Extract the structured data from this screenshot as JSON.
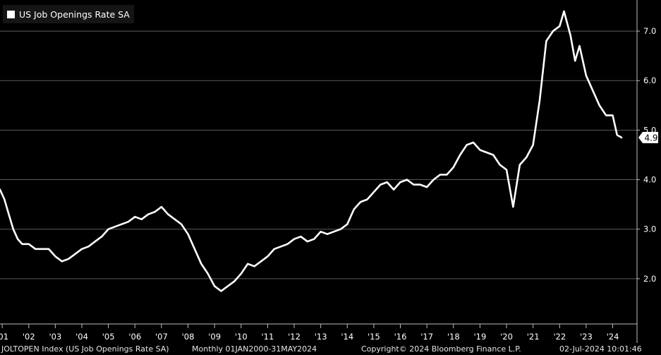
{
  "chart_data": {
    "type": "line",
    "title": "US Job Openings Rate SA",
    "series": [
      {
        "name": "US Job Openings Rate SA",
        "color": "#ffffff",
        "points": [
          [
            "2000-12",
            3.8
          ],
          [
            "2001-02",
            3.6
          ],
          [
            "2001-04",
            3.3
          ],
          [
            "2001-06",
            3.0
          ],
          [
            "2001-08",
            2.8
          ],
          [
            "2001-10",
            2.7
          ],
          [
            "2002-01",
            2.7
          ],
          [
            "2002-04",
            2.6
          ],
          [
            "2002-07",
            2.6
          ],
          [
            "2002-10",
            2.6
          ],
          [
            "2003-01",
            2.45
          ],
          [
            "2003-04",
            2.35
          ],
          [
            "2003-07",
            2.4
          ],
          [
            "2003-10",
            2.5
          ],
          [
            "2004-01",
            2.6
          ],
          [
            "2004-04",
            2.65
          ],
          [
            "2004-07",
            2.75
          ],
          [
            "2004-10",
            2.85
          ],
          [
            "2005-01",
            3.0
          ],
          [
            "2005-04",
            3.05
          ],
          [
            "2005-07",
            3.1
          ],
          [
            "2005-10",
            3.15
          ],
          [
            "2006-01",
            3.25
          ],
          [
            "2006-04",
            3.2
          ],
          [
            "2006-07",
            3.3
          ],
          [
            "2006-10",
            3.35
          ],
          [
            "2007-01",
            3.45
          ],
          [
            "2007-04",
            3.3
          ],
          [
            "2007-07",
            3.2
          ],
          [
            "2007-10",
            3.1
          ],
          [
            "2008-01",
            2.9
          ],
          [
            "2008-04",
            2.6
          ],
          [
            "2008-07",
            2.3
          ],
          [
            "2008-10",
            2.1
          ],
          [
            "2009-01",
            1.85
          ],
          [
            "2009-04",
            1.75
          ],
          [
            "2009-07",
            1.85
          ],
          [
            "2009-10",
            1.95
          ],
          [
            "2010-01",
            2.1
          ],
          [
            "2010-04",
            2.3
          ],
          [
            "2010-07",
            2.25
          ],
          [
            "2010-10",
            2.35
          ],
          [
            "2011-01",
            2.45
          ],
          [
            "2011-04",
            2.6
          ],
          [
            "2011-07",
            2.65
          ],
          [
            "2011-10",
            2.7
          ],
          [
            "2012-01",
            2.8
          ],
          [
            "2012-04",
            2.85
          ],
          [
            "2012-07",
            2.75
          ],
          [
            "2012-10",
            2.8
          ],
          [
            "2013-01",
            2.95
          ],
          [
            "2013-04",
            2.9
          ],
          [
            "2013-07",
            2.95
          ],
          [
            "2013-10",
            3.0
          ],
          [
            "2014-01",
            3.1
          ],
          [
            "2014-04",
            3.4
          ],
          [
            "2014-07",
            3.55
          ],
          [
            "2014-10",
            3.6
          ],
          [
            "2015-01",
            3.75
          ],
          [
            "2015-04",
            3.9
          ],
          [
            "2015-07",
            3.95
          ],
          [
            "2015-10",
            3.8
          ],
          [
            "2016-01",
            3.95
          ],
          [
            "2016-04",
            4.0
          ],
          [
            "2016-07",
            3.9
          ],
          [
            "2016-10",
            3.9
          ],
          [
            "2017-01",
            3.85
          ],
          [
            "2017-04",
            4.0
          ],
          [
            "2017-07",
            4.1
          ],
          [
            "2017-10",
            4.1
          ],
          [
            "2018-01",
            4.25
          ],
          [
            "2018-04",
            4.5
          ],
          [
            "2018-07",
            4.7
          ],
          [
            "2018-10",
            4.75
          ],
          [
            "2019-01",
            4.6
          ],
          [
            "2019-04",
            4.55
          ],
          [
            "2019-07",
            4.5
          ],
          [
            "2019-10",
            4.3
          ],
          [
            "2020-01",
            4.2
          ],
          [
            "2020-04",
            3.45
          ],
          [
            "2020-07",
            4.3
          ],
          [
            "2020-10",
            4.45
          ],
          [
            "2021-01",
            4.7
          ],
          [
            "2021-04",
            5.6
          ],
          [
            "2021-07",
            6.8
          ],
          [
            "2021-10",
            7.0
          ],
          [
            "2022-01",
            7.1
          ],
          [
            "2022-03",
            7.4
          ],
          [
            "2022-06",
            6.9
          ],
          [
            "2022-08",
            6.4
          ],
          [
            "2022-10",
            6.7
          ],
          [
            "2023-01",
            6.1
          ],
          [
            "2023-04",
            5.8
          ],
          [
            "2023-07",
            5.5
          ],
          [
            "2023-10",
            5.3
          ],
          [
            "2024-01",
            5.3
          ],
          [
            "2024-03",
            4.9
          ],
          [
            "2024-05",
            4.85
          ]
        ]
      }
    ],
    "x_ticks": [
      "'01",
      "'02",
      "'03",
      "'04",
      "'05",
      "'06",
      "'07",
      "'08",
      "'09",
      "'10",
      "'11",
      "'12",
      "'13",
      "'14",
      "'15",
      "'16",
      "'17",
      "'18",
      "'19",
      "'20",
      "'21",
      "'22",
      "'23",
      "'24"
    ],
    "y_ticks": [
      "2.0",
      "3.0",
      "4.0",
      "5.0",
      "6.0",
      "7.0"
    ],
    "xlim": [
      "2000-12",
      "2024-12"
    ],
    "ylim": [
      1.1,
      7.6
    ],
    "last_value_label": "4.9",
    "grid": true,
    "legend": "top-left",
    "background": "#000000",
    "line_color": "#ffffff"
  },
  "footer": {
    "index": "JOLTOPEN Index (US Job Openings Rate SA)",
    "period": "Monthly 01JAN2000-31MAY2024",
    "copyright": "Copyright© 2024 Bloomberg Finance L.P.",
    "timestamp": "02-Jul-2024 10:01:46"
  }
}
